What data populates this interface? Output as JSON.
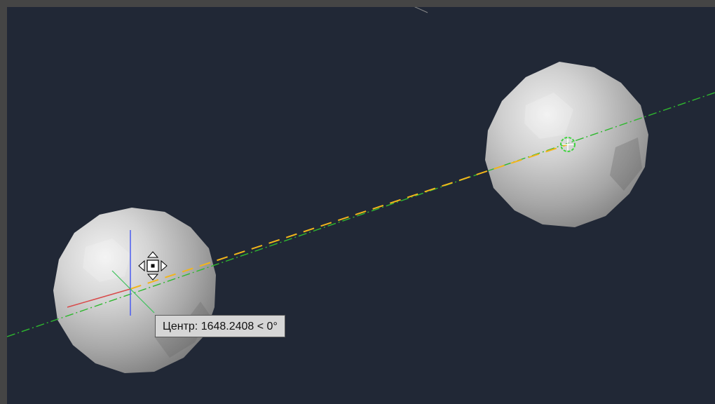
{
  "viewport": {
    "background_color": "#212836",
    "frame_color": "#454545"
  },
  "objects": {
    "spheres": [
      {
        "name": "left-sphere",
        "color": "#c8c8c8"
      },
      {
        "name": "right-sphere",
        "color": "#c8c8c8"
      }
    ],
    "construction_line_color": "#2fb82f",
    "rubber_band_color": "#f2b51b"
  },
  "ucs_icon": {
    "x_axis_color": "#d84a4a",
    "y_axis_color": "#3cc25a",
    "z_axis_color": "#4a5cf0"
  },
  "cursor": {
    "icon": "move-grip-icon"
  },
  "osnap_marker": {
    "icon": "center-snap-marker-icon",
    "color": "#3cd43c"
  },
  "tooltip": {
    "text": "Центр: 1648.2408 < 0°"
  }
}
